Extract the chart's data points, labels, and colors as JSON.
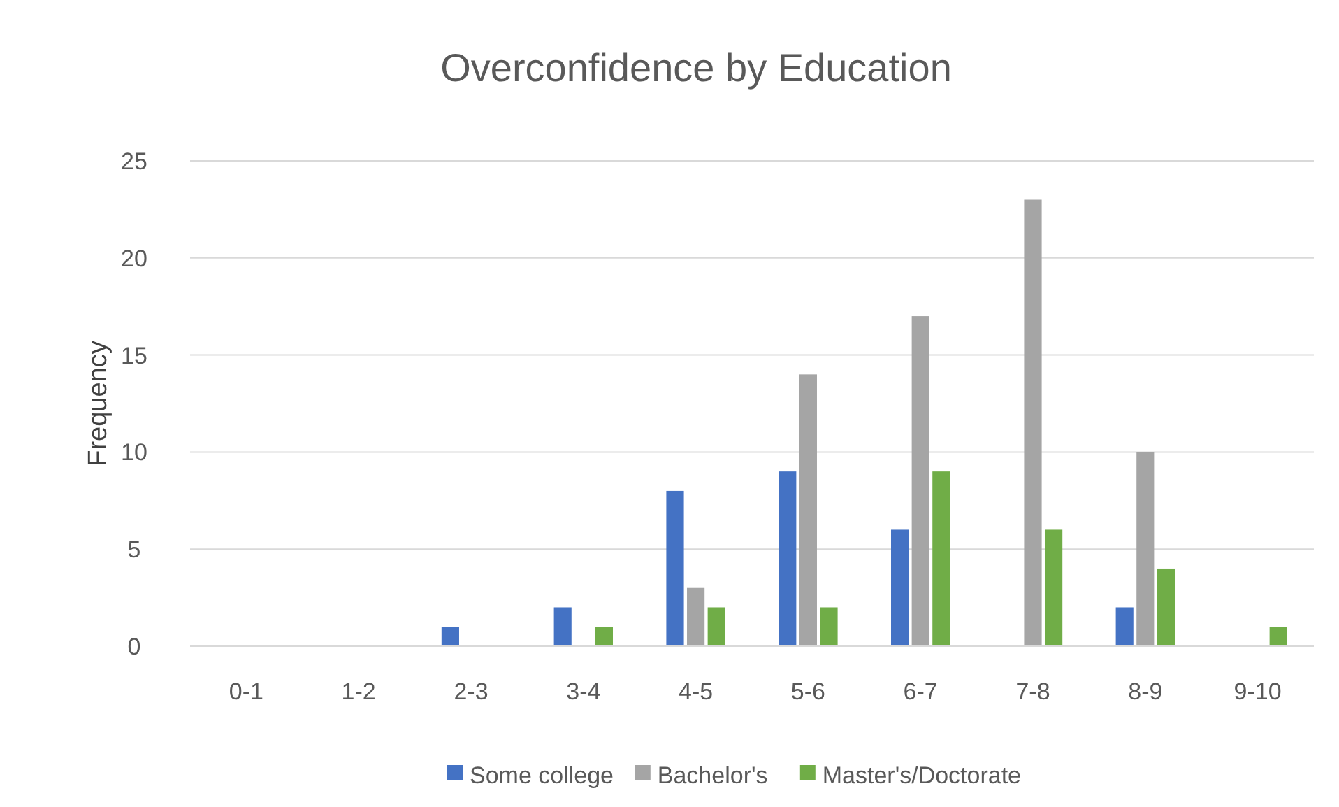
{
  "chart_data": {
    "type": "bar",
    "title": "Overconfidence by Education",
    "ylabel": "Frequency",
    "categories": [
      "0-1",
      "1-2",
      "2-3",
      "3-4",
      "4-5",
      "5-6",
      "6-7",
      "7-8",
      "8-9",
      "9-10"
    ],
    "series": [
      {
        "name": "Some college",
        "color": "#4472c4",
        "values": [
          0,
          0,
          1,
          2,
          8,
          9,
          6,
          0,
          2,
          0
        ]
      },
      {
        "name": "Bachelor's",
        "color": "#a5a5a5",
        "values": [
          0,
          0,
          0,
          0,
          3,
          14,
          17,
          23,
          10,
          0
        ]
      },
      {
        "name": "Master's/Doctorate",
        "color": "#70ad47",
        "values": [
          0,
          0,
          0,
          1,
          2,
          2,
          9,
          6,
          4,
          1
        ]
      }
    ],
    "ylim": [
      0,
      25
    ],
    "yticks": [
      0,
      5,
      10,
      15,
      20,
      25
    ],
    "grid": "y",
    "legend": "bottom"
  }
}
